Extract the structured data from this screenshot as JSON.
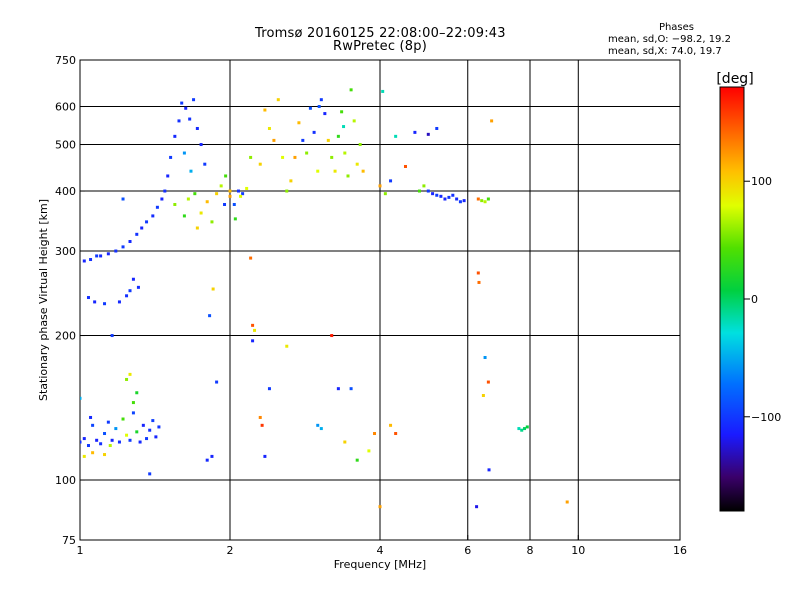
{
  "header": {
    "title": "Tromsø 20160125 22:08:00–22:09:43",
    "subtitle": "RwPretec (8p)"
  },
  "phases": {
    "heading": "Phases",
    "line_o": "mean, sd,O: −98.2, 19.2",
    "line_x": "mean, sd,X:  74.0, 19.7"
  },
  "colorbar": {
    "label": "[deg]",
    "ticks": [
      {
        "value": 100,
        "label": "100"
      },
      {
        "value": 0,
        "label": "0"
      },
      {
        "value": -100,
        "label": "−100"
      }
    ],
    "range": [
      -180,
      180
    ]
  },
  "chart_data": {
    "type": "scatter",
    "title": "Tromsø 20160125 22:08:00–22:09:43",
    "subtitle": "RwPretec (8p)",
    "xlabel": "Frequency [MHz]",
    "ylabel": "Stationary phase Virtual Height [km]",
    "x_scale": "log",
    "y_scale": "log",
    "xlim": [
      1,
      16
    ],
    "ylim": [
      75,
      750
    ],
    "x_ticks": [
      {
        "value": 1,
        "label": "1"
      },
      {
        "value": 2,
        "label": "2"
      },
      {
        "value": 4,
        "label": "4"
      },
      {
        "value": 6,
        "label": "6"
      },
      {
        "value": 8,
        "label": "8"
      },
      {
        "value": 10,
        "label": "10"
      },
      {
        "value": 16,
        "label": "16"
      }
    ],
    "y_ticks": [
      {
        "value": 75,
        "label": "75"
      },
      {
        "value": 100,
        "label": "100"
      },
      {
        "value": 200,
        "label": "200"
      },
      {
        "value": 300,
        "label": "300"
      },
      {
        "value": 400,
        "label": "400"
      },
      {
        "value": 500,
        "label": "500"
      },
      {
        "value": 600,
        "label": "600"
      },
      {
        "value": 750,
        "label": "750"
      }
    ],
    "x_grid": [
      2,
      4,
      6,
      8,
      10
    ],
    "y_grid": [
      100,
      200,
      300,
      400,
      500,
      600
    ],
    "color_scale": "phase (deg), rainbow: −180 black → blue → cyan → green → yellow → red 180",
    "points": [
      [
        1.0,
        120,
        -105
      ],
      [
        1.02,
        122,
        -110
      ],
      [
        1.04,
        118,
        -100
      ],
      [
        1.05,
        135,
        -108
      ],
      [
        1.06,
        130,
        -95
      ],
      [
        1.08,
        121,
        -112
      ],
      [
        1.1,
        119,
        -105
      ],
      [
        1.12,
        125,
        -90
      ],
      [
        1.14,
        132,
        -100
      ],
      [
        1.16,
        121,
        -110
      ],
      [
        1.18,
        128,
        -60
      ],
      [
        1.2,
        120,
        -105
      ],
      [
        1.22,
        134,
        40
      ],
      [
        1.24,
        124,
        80
      ],
      [
        1.26,
        121,
        -100
      ],
      [
        1.28,
        138,
        -95
      ],
      [
        1.3,
        126,
        20
      ],
      [
        1.32,
        120,
        -108
      ],
      [
        1.34,
        130,
        -110
      ],
      [
        1.36,
        122,
        -100
      ],
      [
        1.38,
        127,
        -105
      ],
      [
        1.4,
        133,
        -98
      ],
      [
        1.42,
        123,
        -110
      ],
      [
        1.44,
        129,
        -102
      ],
      [
        1.02,
        112,
        90
      ],
      [
        1.06,
        114,
        110
      ],
      [
        1.15,
        118,
        70
      ],
      [
        1.24,
        162,
        60
      ],
      [
        1.26,
        166,
        90
      ],
      [
        1.3,
        152,
        20
      ],
      [
        1.28,
        145,
        40
      ],
      [
        1.12,
        113,
        100
      ],
      [
        1.38,
        103,
        -100
      ],
      [
        1.0,
        148,
        -50
      ],
      [
        1.02,
        286,
        -110
      ],
      [
        1.05,
        288,
        -105
      ],
      [
        1.08,
        293,
        -100
      ],
      [
        1.1,
        293,
        -108
      ],
      [
        1.14,
        296,
        -110
      ],
      [
        1.18,
        300,
        -105
      ],
      [
        1.22,
        306,
        -100
      ],
      [
        1.26,
        314,
        -108
      ],
      [
        1.3,
        325,
        -104
      ],
      [
        1.33,
        335,
        -110
      ],
      [
        1.36,
        345,
        -100
      ],
      [
        1.4,
        355,
        -106
      ],
      [
        1.43,
        370,
        -100
      ],
      [
        1.46,
        385,
        -110
      ],
      [
        1.04,
        240,
        -105
      ],
      [
        1.07,
        235,
        -110
      ],
      [
        1.12,
        233,
        -100
      ],
      [
        1.2,
        235,
        -108
      ],
      [
        1.24,
        242,
        -105
      ],
      [
        1.26,
        248,
        -100
      ],
      [
        1.28,
        262,
        -110
      ],
      [
        1.31,
        252,
        -106
      ],
      [
        1.16,
        200,
        -100
      ],
      [
        1.22,
        385,
        -90
      ],
      [
        1.48,
        400,
        -105
      ],
      [
        1.5,
        430,
        -110
      ],
      [
        1.52,
        470,
        -100
      ],
      [
        1.55,
        520,
        -108
      ],
      [
        1.58,
        560,
        -105
      ],
      [
        1.6,
        610,
        -100
      ],
      [
        1.63,
        595,
        -110
      ],
      [
        1.66,
        565,
        -104
      ],
      [
        1.69,
        620,
        -100
      ],
      [
        1.72,
        540,
        -108
      ],
      [
        1.75,
        500,
        -110
      ],
      [
        1.78,
        455,
        -100
      ],
      [
        1.62,
        480,
        -60
      ],
      [
        1.67,
        440,
        -50
      ],
      [
        1.55,
        375,
        60
      ],
      [
        1.62,
        355,
        30
      ],
      [
        1.65,
        385,
        70
      ],
      [
        1.7,
        395,
        40
      ],
      [
        1.75,
        360,
        90
      ],
      [
        1.8,
        380,
        110
      ],
      [
        1.84,
        345,
        60
      ],
      [
        1.88,
        395,
        100
      ],
      [
        1.92,
        410,
        70
      ],
      [
        1.96,
        430,
        40
      ],
      [
        2.0,
        390,
        120
      ],
      [
        2.04,
        375,
        -90
      ],
      [
        2.08,
        400,
        -105
      ],
      [
        2.12,
        395,
        -100
      ],
      [
        2.16,
        405,
        80
      ],
      [
        2.2,
        470,
        60
      ],
      [
        2.05,
        350,
        30
      ],
      [
        1.72,
        335,
        100
      ],
      [
        2.3,
        455,
        100
      ],
      [
        2.35,
        590,
        110
      ],
      [
        2.4,
        540,
        90
      ],
      [
        2.45,
        510,
        120
      ],
      [
        2.5,
        620,
        100
      ],
      [
        2.55,
        470,
        80
      ],
      [
        2.6,
        400,
        60
      ],
      [
        2.65,
        420,
        100
      ],
      [
        2.7,
        470,
        120
      ],
      [
        2.75,
        555,
        110
      ],
      [
        2.8,
        510,
        -100
      ],
      [
        2.85,
        480,
        60
      ],
      [
        2.9,
        595,
        -90
      ],
      [
        2.95,
        530,
        -105
      ],
      [
        3.0,
        440,
        80
      ],
      [
        3.05,
        620,
        -100
      ],
      [
        3.1,
        580,
        -110
      ],
      [
        3.15,
        510,
        100
      ],
      [
        3.2,
        470,
        60
      ],
      [
        3.25,
        440,
        90
      ],
      [
        3.3,
        520,
        30
      ],
      [
        3.35,
        585,
        40
      ],
      [
        3.4,
        480,
        70
      ],
      [
        3.45,
        430,
        60
      ],
      [
        3.5,
        650,
        40
      ],
      [
        3.55,
        560,
        70
      ],
      [
        3.6,
        455,
        90
      ],
      [
        3.65,
        500,
        60
      ],
      [
        3.7,
        440,
        110
      ],
      [
        3.02,
        600,
        -90
      ],
      [
        3.38,
        545,
        -20
      ],
      [
        4.0,
        410,
        120
      ],
      [
        4.1,
        395,
        60
      ],
      [
        4.2,
        420,
        -100
      ],
      [
        4.3,
        520,
        -20
      ],
      [
        4.5,
        450,
        150
      ],
      [
        4.7,
        530,
        -110
      ],
      [
        4.8,
        400,
        40
      ],
      [
        4.9,
        410,
        60
      ],
      [
        5.0,
        400,
        -100
      ],
      [
        5.1,
        395,
        -110
      ],
      [
        5.2,
        392,
        -100
      ],
      [
        5.3,
        390,
        -108
      ],
      [
        5.4,
        385,
        -110
      ],
      [
        5.5,
        388,
        -102
      ],
      [
        5.6,
        392,
        -105
      ],
      [
        5.7,
        385,
        -108
      ],
      [
        5.8,
        380,
        -100
      ],
      [
        5.9,
        382,
        -110
      ],
      [
        5.2,
        540,
        -100
      ],
      [
        5.0,
        525,
        -130
      ],
      [
        6.3,
        385,
        140
      ],
      [
        6.4,
        382,
        60
      ],
      [
        6.5,
        380,
        70
      ],
      [
        6.6,
        385,
        40
      ],
      [
        6.7,
        560,
        120
      ],
      [
        4.05,
        645,
        -20
      ],
      [
        6.3,
        270,
        150
      ],
      [
        6.32,
        258,
        140
      ],
      [
        6.5,
        180,
        -60
      ],
      [
        6.6,
        160,
        150
      ],
      [
        6.45,
        150,
        100
      ],
      [
        6.62,
        105,
        -110
      ],
      [
        6.25,
        88,
        -120
      ],
      [
        7.6,
        128,
        -20
      ],
      [
        7.7,
        127,
        -10
      ],
      [
        7.8,
        128,
        0
      ],
      [
        7.9,
        129,
        10
      ],
      [
        9.5,
        90,
        120
      ],
      [
        1.8,
        110,
        -108
      ],
      [
        1.84,
        112,
        -110
      ],
      [
        1.82,
        220,
        -90
      ],
      [
        1.85,
        250,
        100
      ],
      [
        1.88,
        160,
        -100
      ],
      [
        1.95,
        375,
        -100
      ],
      [
        2.0,
        400,
        110
      ],
      [
        2.1,
        390,
        80
      ],
      [
        2.2,
        290,
        140
      ],
      [
        2.22,
        210,
        150
      ],
      [
        2.24,
        205,
        90
      ],
      [
        2.22,
        195,
        -110
      ],
      [
        2.3,
        135,
        130
      ],
      [
        2.32,
        130,
        160
      ],
      [
        2.35,
        112,
        -110
      ],
      [
        2.4,
        155,
        -100
      ],
      [
        2.6,
        190,
        90
      ],
      [
        3.0,
        130,
        -60
      ],
      [
        3.05,
        128,
        -50
      ],
      [
        3.2,
        200,
        170
      ],
      [
        3.3,
        155,
        -110
      ],
      [
        3.4,
        120,
        100
      ],
      [
        3.5,
        155,
        -90
      ],
      [
        3.6,
        110,
        30
      ],
      [
        3.8,
        115,
        80
      ],
      [
        3.9,
        125,
        130
      ],
      [
        4.0,
        88,
        120
      ],
      [
        4.2,
        130,
        110
      ],
      [
        4.3,
        125,
        150
      ]
    ]
  }
}
